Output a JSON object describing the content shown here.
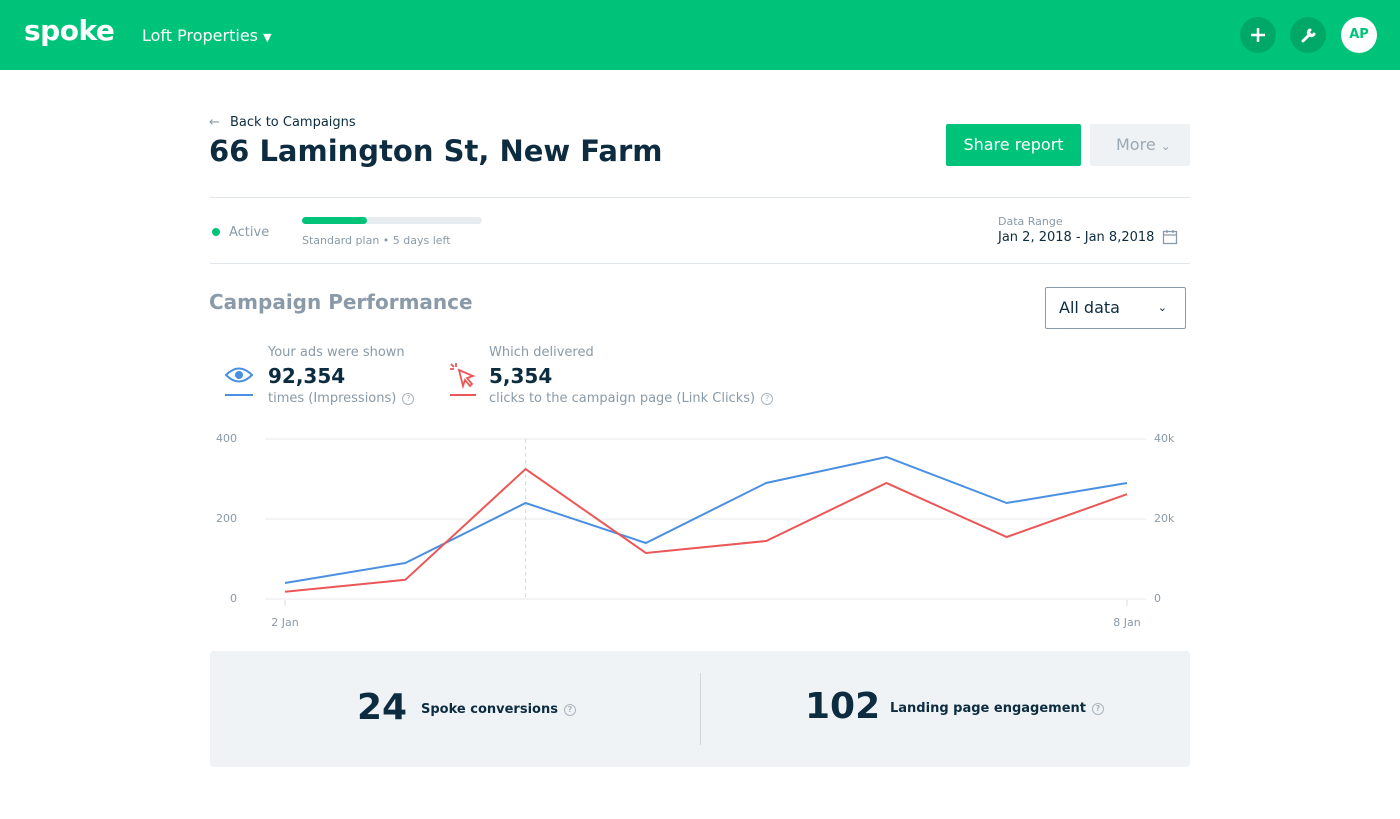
{
  "header": {
    "logo": "spoke",
    "account": "Loft Properties",
    "avatar": "AP"
  },
  "back_link": "Back to Campaigns",
  "title": "66 Lamington St, New Farm",
  "actions": {
    "share": "Share report",
    "more": "More"
  },
  "status": {
    "state": "Active",
    "plan": "Standard plan",
    "remaining": "5 days left",
    "range_label": "Data Range",
    "range": "Jan 2, 2018 - Jan 8,2018"
  },
  "performance": {
    "title": "Campaign Performance",
    "filter": "All data",
    "impressions": {
      "caption": "Your ads were shown",
      "value": "92,354",
      "detail": "times (Impressions)"
    },
    "clicks": {
      "caption": "Which delivered",
      "value": "5,354",
      "detail": "clicks to the campaign page (Link Clicks)"
    }
  },
  "chart_data": {
    "type": "line",
    "categories": [
      "2 Jan",
      null,
      null,
      null,
      null,
      null,
      null,
      "8 Jan"
    ],
    "series": [
      {
        "name": "Impressions",
        "color": "#4a90e2",
        "axis": "y2",
        "values": [
          4000,
          9000,
          24000,
          14000,
          29000,
          35500,
          24000,
          29000
        ]
      },
      {
        "name": "Link Clicks",
        "color": "#eb5757",
        "values": [
          18,
          48,
          325,
          115,
          145,
          290,
          155,
          262
        ]
      }
    ],
    "ylim": [
      0,
      400
    ],
    "yticks": [
      0,
      200,
      400
    ],
    "y2lim": [
      0,
      40000
    ],
    "y2ticks": [
      0,
      {
        "value": 20000,
        "label": "20k"
      },
      {
        "value": 40000,
        "label": "40k"
      }
    ],
    "grid": true
  },
  "summary": [
    {
      "value": "24",
      "label": "Spoke conversions"
    },
    {
      "value": "102",
      "label": "Landing page engagement"
    }
  ]
}
